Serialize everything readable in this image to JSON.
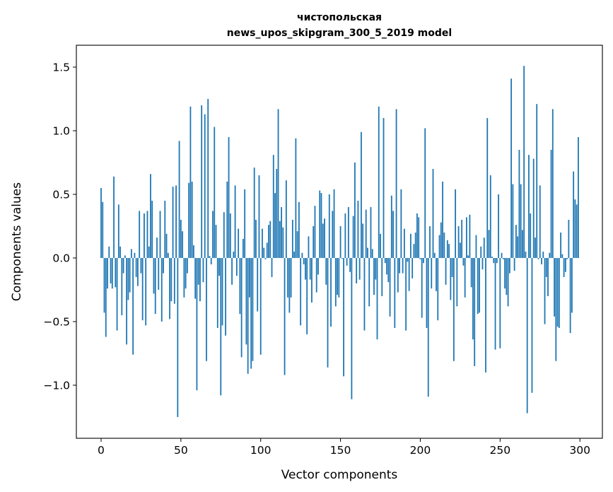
{
  "chart_data": {
    "type": "bar",
    "title_lines": [
      "чистопольская",
      "news_upos_skipgram_300_5_2019 model"
    ],
    "xlabel": "Vector components",
    "ylabel": "Components values",
    "xlim": [
      -15.5,
      314.1
    ],
    "ylim": [
      -1.417,
      1.672
    ],
    "xticks": [
      0,
      50,
      100,
      150,
      200,
      250,
      300
    ],
    "xtick_labels": [
      "0",
      "50",
      "100",
      "150",
      "200",
      "250",
      "300"
    ],
    "yticks": [
      -1.0,
      -0.5,
      0.0,
      0.5,
      1.0,
      1.5
    ],
    "ytick_labels": [
      "−1.0",
      "−0.5",
      "0.0",
      "0.5",
      "1.0",
      "1.5"
    ],
    "grid": false,
    "bar_color": "#1f77b4",
    "values": [
      0.55,
      0.44,
      -0.43,
      -0.62,
      -0.24,
      0.09,
      -0.2,
      -0.24,
      0.64,
      -0.23,
      -0.57,
      0.42,
      0.09,
      -0.45,
      -0.12,
      0.02,
      -0.68,
      -0.33,
      -0.27,
      0.07,
      -0.76,
      0.04,
      -0.15,
      -0.22,
      0.37,
      -0.12,
      -0.49,
      0.35,
      -0.53,
      0.37,
      0.09,
      0.66,
      0.45,
      -0.28,
      -0.44,
      0.16,
      -0.25,
      0.37,
      -0.5,
      -0.12,
      0.45,
      0.19,
      0.04,
      -0.48,
      -0.34,
      0.56,
      -0.36,
      0.57,
      -1.25,
      0.92,
      0.3,
      0.21,
      -0.31,
      -0.24,
      -0.12,
      0.59,
      1.19,
      0.6,
      0.1,
      -0.32,
      -1.04,
      -0.21,
      -0.34,
      1.2,
      -0.19,
      1.13,
      -0.81,
      1.25,
      0.015,
      -0.05,
      0.37,
      1.03,
      0.26,
      -0.55,
      -0.14,
      -1.08,
      -0.53,
      0.36,
      -0.61,
      0.6,
      0.95,
      0.35,
      -0.21,
      0.05,
      0.57,
      -0.14,
      0.23,
      -0.44,
      -0.78,
      0.15,
      0.54,
      -0.68,
      -0.91,
      -0.31,
      -0.87,
      -0.81,
      0.71,
      0.3,
      -0.42,
      0.65,
      -0.76,
      0.23,
      0.08,
      -0.01,
      0.12,
      0.26,
      0.29,
      -0.15,
      0.81,
      0.51,
      0.7,
      1.17,
      0.29,
      0.4,
      0.24,
      -0.92,
      0.61,
      -0.31,
      -0.43,
      -0.31,
      0.3,
      0.05,
      0.94,
      0.21,
      0.44,
      -0.53,
      0.04,
      -0.05,
      -0.17,
      -0.6,
      0.17,
      -0.17,
      -0.35,
      0.25,
      0.41,
      -0.27,
      -0.13,
      0.53,
      0.51,
      0.27,
      0.31,
      -0.21,
      -0.86,
      0.5,
      -0.54,
      0.37,
      0.54,
      -0.38,
      -0.29,
      -0.31,
      0.25,
      -0.005,
      -0.93,
      0.35,
      -0.06,
      0.4,
      -0.11,
      -1.11,
      0.33,
      0.75,
      -0.2,
      0.45,
      -0.17,
      0.99,
      0.27,
      -0.57,
      0.38,
      0.08,
      -0.38,
      0.4,
      0.07,
      -0.29,
      -0.17,
      -0.64,
      1.19,
      0.19,
      -0.3,
      1.1,
      -0.04,
      -0.13,
      -0.19,
      -0.46,
      0.49,
      0.37,
      -0.55,
      1.17,
      -0.27,
      -0.12,
      0.54,
      -0.12,
      0.23,
      -0.57,
      -0.03,
      -0.26,
      0.19,
      -0.16,
      0.11,
      0.2,
      0.35,
      0.32,
      -0.01,
      -0.47,
      -0.04,
      1.02,
      -0.55,
      -1.09,
      0.25,
      -0.24,
      0.7,
      0.04,
      -0.26,
      -0.49,
      0.18,
      0.28,
      0.6,
      0.2,
      -0.21,
      0.14,
      0.11,
      -0.33,
      -0.15,
      -0.81,
      0.54,
      -0.38,
      0.25,
      0.12,
      0.3,
      -0.06,
      -0.31,
      0.32,
      0.02,
      0.34,
      -0.23,
      -0.64,
      -0.85,
      0.18,
      -0.44,
      -0.43,
      0.09,
      -0.09,
      0.16,
      -0.9,
      1.1,
      0.22,
      0.65,
      0.01,
      -0.04,
      -0.72,
      -0.04,
      0.5,
      -0.71,
      0.04,
      -0.01,
      -0.24,
      -0.29,
      -0.38,
      -0.12,
      1.41,
      0.58,
      -0.1,
      0.26,
      0.17,
      0.85,
      0.58,
      0.22,
      1.51,
      0.05,
      -1.22,
      0.81,
      0.35,
      -1.06,
      0.78,
      0.16,
      1.21,
      -0.01,
      0.57,
      -0.05,
      0.05,
      -0.52,
      -0.15,
      -0.3,
      0.04,
      0.85,
      1.17,
      -0.46,
      -0.81,
      -0.54,
      -0.55,
      0.2,
      0.03,
      -0.15,
      -0.11,
      -0.01,
      0.3,
      -0.59,
      -0.43,
      0.68,
      0.46,
      0.42,
      0.95
    ]
  }
}
